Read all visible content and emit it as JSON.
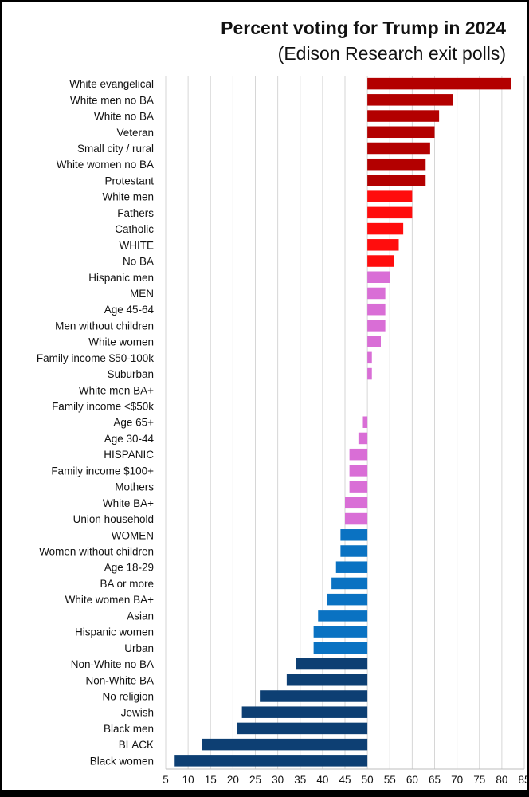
{
  "chart_data": {
    "type": "bar",
    "orientation": "horizontal",
    "title": "Percent voting for Trump in 2024",
    "subtitle": "(Edison Research exit polls)",
    "xlabel": "",
    "ylabel": "",
    "xlim": [
      5,
      85
    ],
    "baseline": 50,
    "grid": true,
    "xticks": [
      5,
      10,
      15,
      20,
      25,
      30,
      35,
      40,
      45,
      50,
      55,
      60,
      65,
      70,
      75,
      80,
      85
    ],
    "categories": [
      "White evangelical",
      "White men no BA",
      "White no BA",
      "Veteran",
      "Small city / rural",
      "White women no BA",
      "Protestant",
      "White men",
      "Fathers",
      "Catholic",
      "WHITE",
      "No BA",
      "Hispanic men",
      "MEN",
      "Age 45-64",
      "Men without children",
      "White women",
      "Family income $50-100k",
      "Suburban",
      "White men BA+",
      "Family income <$50k",
      "Age 65+",
      "Age 30-44",
      "HISPANIC",
      "Family income $100+",
      "Mothers",
      "White BA+",
      "Union household",
      "WOMEN",
      "Women without children",
      "Age 18-29",
      "BA or more",
      "White women BA+",
      "Asian",
      "Hispanic women",
      "Urban",
      "Non-White no BA",
      "Non-White BA",
      "No religion",
      "Jewish",
      "Black men",
      "BLACK",
      "Black women"
    ],
    "values": [
      82,
      69,
      66,
      65,
      64,
      63,
      63,
      60,
      60,
      58,
      57,
      56,
      55,
      54,
      54,
      54,
      53,
      51,
      51,
      50,
      50,
      49,
      48,
      46,
      46,
      46,
      45,
      45,
      44,
      44,
      43,
      42,
      41,
      39,
      38,
      38,
      34,
      32,
      26,
      22,
      21,
      13,
      7
    ],
    "bar_colors": [
      "#b30000",
      "#b30000",
      "#b30000",
      "#b30000",
      "#b30000",
      "#b30000",
      "#b30000",
      "#ff0d0d",
      "#ff0d0d",
      "#ff0d0d",
      "#ff0d0d",
      "#ff0d0d",
      "#d96ed6",
      "#d96ed6",
      "#d96ed6",
      "#d96ed6",
      "#d96ed6",
      "#d96ed6",
      "#d96ed6",
      "#d96ed6",
      "#d96ed6",
      "#d96ed6",
      "#d96ed6",
      "#d96ed6",
      "#d96ed6",
      "#d96ed6",
      "#d96ed6",
      "#d96ed6",
      "#0a72c2",
      "#0a72c2",
      "#0a72c2",
      "#0a72c2",
      "#0a72c2",
      "#0a72c2",
      "#0a72c2",
      "#0a72c2",
      "#0d3f73",
      "#0d3f73",
      "#0d3f73",
      "#0d3f73",
      "#0d3f73",
      "#0d3f73",
      "#0d3f73"
    ]
  }
}
